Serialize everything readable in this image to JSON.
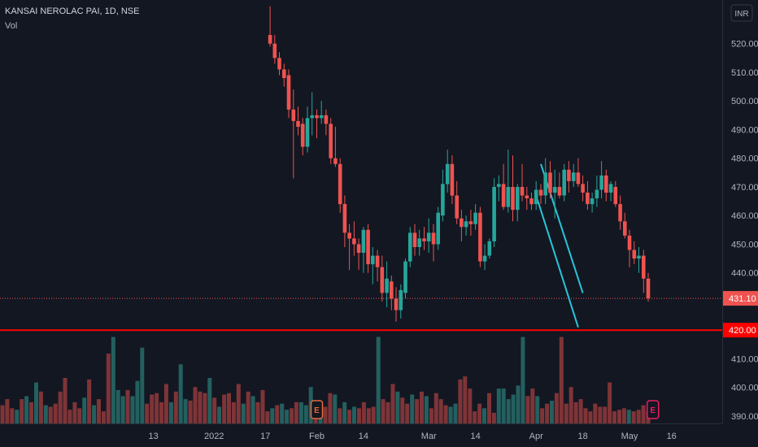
{
  "chart_data": {
    "type": "candlestick",
    "title": "KANSAI NEROLAC PAI, 1D, NSE",
    "currency": "INR",
    "volume_label": "Vol",
    "ylim": [
      387,
      527
    ],
    "y_ticks": [
      390,
      400,
      410,
      420,
      430,
      440,
      450,
      460,
      470,
      480,
      490,
      500,
      510,
      520
    ],
    "y_tick_labels": [
      "390.00",
      "400.00",
      "410.00",
      "420.00",
      "430.00",
      "440.00",
      "450.00",
      "460.00",
      "470.00",
      "480.00",
      "490.00",
      "500.00",
      "510.00",
      "520.00"
    ],
    "x_labels": [
      {
        "label": "13",
        "index": -44
      },
      {
        "label": "2022",
        "index": -31
      },
      {
        "label": "17",
        "index": -20
      },
      {
        "label": "Feb",
        "index": -9
      },
      {
        "label": "14",
        "index": 1
      },
      {
        "label": "Mar",
        "index": 15
      },
      {
        "label": "14",
        "index": 25
      },
      {
        "label": "Apr",
        "index": 38
      },
      {
        "label": "18",
        "index": 48
      },
      {
        "label": "May",
        "index": 58
      },
      {
        "label": "16",
        "index": 67
      }
    ],
    "last_price": "431.10",
    "last_value": 431.1,
    "support_level": "420.00",
    "support_value": 420,
    "earnings_markers": [
      {
        "label": "E",
        "index": -9
      },
      {
        "label": "E",
        "index": 63
      }
    ],
    "candles": [
      {
        "o": 523,
        "h": 533,
        "l": 519,
        "c": 520
      },
      {
        "o": 520,
        "h": 523,
        "l": 513,
        "c": 515
      },
      {
        "o": 515,
        "h": 517,
        "l": 509,
        "c": 511
      },
      {
        "o": 511,
        "h": 513,
        "l": 505,
        "c": 508
      },
      {
        "o": 509,
        "h": 511,
        "l": 494,
        "c": 497
      },
      {
        "o": 497,
        "h": 504,
        "l": 473,
        "c": 493
      },
      {
        "o": 493,
        "h": 498,
        "l": 488,
        "c": 491
      },
      {
        "o": 492,
        "h": 494,
        "l": 481,
        "c": 484
      },
      {
        "o": 484,
        "h": 498,
        "l": 482,
        "c": 494
      },
      {
        "o": 494,
        "h": 503,
        "l": 488,
        "c": 495
      },
      {
        "o": 495,
        "h": 497,
        "l": 487,
        "c": 494
      },
      {
        "o": 494,
        "h": 500,
        "l": 492,
        "c": 495
      },
      {
        "o": 495,
        "h": 497,
        "l": 488,
        "c": 492
      },
      {
        "o": 492,
        "h": 494,
        "l": 478,
        "c": 480
      },
      {
        "o": 480,
        "h": 491,
        "l": 477,
        "c": 478
      },
      {
        "o": 478,
        "h": 480,
        "l": 461,
        "c": 464
      },
      {
        "o": 464,
        "h": 467,
        "l": 449,
        "c": 454
      },
      {
        "o": 454,
        "h": 457,
        "l": 441,
        "c": 452
      },
      {
        "o": 452,
        "h": 458,
        "l": 446,
        "c": 450
      },
      {
        "o": 450,
        "h": 452,
        "l": 441,
        "c": 447
      },
      {
        "o": 447,
        "h": 456,
        "l": 440,
        "c": 455
      },
      {
        "o": 455,
        "h": 457,
        "l": 440,
        "c": 443
      },
      {
        "o": 443,
        "h": 449,
        "l": 436,
        "c": 446
      },
      {
        "o": 446,
        "h": 448,
        "l": 437,
        "c": 442
      },
      {
        "o": 442,
        "h": 446,
        "l": 430,
        "c": 433
      },
      {
        "o": 433,
        "h": 444,
        "l": 428,
        "c": 438
      },
      {
        "o": 437,
        "h": 439,
        "l": 427,
        "c": 431
      },
      {
        "o": 431,
        "h": 435,
        "l": 423,
        "c": 427
      },
      {
        "o": 427,
        "h": 436,
        "l": 424,
        "c": 434
      },
      {
        "o": 433,
        "h": 445,
        "l": 431,
        "c": 444
      },
      {
        "o": 444,
        "h": 456,
        "l": 442,
        "c": 454
      },
      {
        "o": 454,
        "h": 457,
        "l": 446,
        "c": 449
      },
      {
        "o": 449,
        "h": 455,
        "l": 446,
        "c": 452
      },
      {
        "o": 452,
        "h": 456,
        "l": 448,
        "c": 451
      },
      {
        "o": 451,
        "h": 459,
        "l": 447,
        "c": 454
      },
      {
        "o": 454,
        "h": 457,
        "l": 444,
        "c": 450
      },
      {
        "o": 450,
        "h": 463,
        "l": 448,
        "c": 461
      },
      {
        "o": 460,
        "h": 476,
        "l": 458,
        "c": 471
      },
      {
        "o": 471,
        "h": 483,
        "l": 468,
        "c": 478
      },
      {
        "o": 478,
        "h": 481,
        "l": 464,
        "c": 467
      },
      {
        "o": 467,
        "h": 472,
        "l": 457,
        "c": 459
      },
      {
        "o": 459,
        "h": 462,
        "l": 451,
        "c": 456
      },
      {
        "o": 456,
        "h": 460,
        "l": 453,
        "c": 458
      },
      {
        "o": 458,
        "h": 462,
        "l": 453,
        "c": 457
      },
      {
        "o": 457,
        "h": 464,
        "l": 455,
        "c": 461
      },
      {
        "o": 461,
        "h": 463,
        "l": 442,
        "c": 444
      },
      {
        "o": 444,
        "h": 450,
        "l": 441,
        "c": 446
      },
      {
        "o": 446,
        "h": 452,
        "l": 445,
        "c": 451
      },
      {
        "o": 451,
        "h": 473,
        "l": 449,
        "c": 470
      },
      {
        "o": 470,
        "h": 474,
        "l": 465,
        "c": 471
      },
      {
        "o": 471,
        "h": 478,
        "l": 462,
        "c": 463
      },
      {
        "o": 463,
        "h": 483,
        "l": 461,
        "c": 470
      },
      {
        "o": 470,
        "h": 481,
        "l": 458,
        "c": 462
      },
      {
        "o": 462,
        "h": 471,
        "l": 458,
        "c": 470
      },
      {
        "o": 470,
        "h": 478,
        "l": 465,
        "c": 467
      },
      {
        "o": 467,
        "h": 470,
        "l": 462,
        "c": 466
      },
      {
        "o": 466,
        "h": 468,
        "l": 462,
        "c": 464
      },
      {
        "o": 464,
        "h": 472,
        "l": 462,
        "c": 469
      },
      {
        "o": 469,
        "h": 471,
        "l": 464,
        "c": 467
      },
      {
        "o": 467,
        "h": 480,
        "l": 464,
        "c": 475
      },
      {
        "o": 475,
        "h": 479,
        "l": 466,
        "c": 468
      },
      {
        "o": 468,
        "h": 476,
        "l": 459,
        "c": 470
      },
      {
        "o": 470,
        "h": 475,
        "l": 466,
        "c": 467
      },
      {
        "o": 467,
        "h": 478,
        "l": 465,
        "c": 476
      },
      {
        "o": 476,
        "h": 479,
        "l": 468,
        "c": 472
      },
      {
        "o": 472,
        "h": 478,
        "l": 470,
        "c": 475
      },
      {
        "o": 475,
        "h": 480,
        "l": 470,
        "c": 471
      },
      {
        "o": 471,
        "h": 474,
        "l": 465,
        "c": 468
      },
      {
        "o": 468,
        "h": 472,
        "l": 462,
        "c": 464
      },
      {
        "o": 464,
        "h": 468,
        "l": 461,
        "c": 466
      },
      {
        "o": 466,
        "h": 474,
        "l": 463,
        "c": 469
      },
      {
        "o": 469,
        "h": 479,
        "l": 466,
        "c": 474
      },
      {
        "o": 474,
        "h": 476,
        "l": 465,
        "c": 468
      },
      {
        "o": 468,
        "h": 472,
        "l": 465,
        "c": 471
      },
      {
        "o": 470,
        "h": 472,
        "l": 463,
        "c": 464
      },
      {
        "o": 464,
        "h": 467,
        "l": 455,
        "c": 458
      },
      {
        "o": 458,
        "h": 461,
        "l": 452,
        "c": 453
      },
      {
        "o": 453,
        "h": 455,
        "l": 442,
        "c": 448
      },
      {
        "o": 448,
        "h": 451,
        "l": 443,
        "c": 445
      },
      {
        "o": 445,
        "h": 449,
        "l": 440,
        "c": 446
      },
      {
        "o": 446,
        "h": 448,
        "l": 433,
        "c": 438
      },
      {
        "o": 438,
        "h": 440,
        "l": 430,
        "c": 431.1
      }
    ],
    "volume": [
      {
        "v": 12,
        "up": false
      },
      {
        "v": 16,
        "up": false
      },
      {
        "v": 10,
        "up": false
      },
      {
        "v": 9,
        "up": true
      },
      {
        "v": 16,
        "up": false
      },
      {
        "v": 18,
        "up": true
      },
      {
        "v": 14,
        "up": false
      },
      {
        "v": 27,
        "up": true
      },
      {
        "v": 21,
        "up": false
      },
      {
        "v": 12,
        "up": true
      },
      {
        "v": 11,
        "up": false
      },
      {
        "v": 13,
        "up": false
      },
      {
        "v": 21,
        "up": false
      },
      {
        "v": 30,
        "up": false
      },
      {
        "v": 9,
        "up": false
      },
      {
        "v": 14,
        "up": false
      },
      {
        "v": 10,
        "up": false
      },
      {
        "v": 17,
        "up": true
      },
      {
        "v": 29,
        "up": false
      },
      {
        "v": 12,
        "up": true
      },
      {
        "v": 16,
        "up": false
      },
      {
        "v": 8,
        "up": false
      },
      {
        "v": 46,
        "up": false
      },
      {
        "v": 57,
        "up": true
      },
      {
        "v": 22,
        "up": true
      },
      {
        "v": 18,
        "up": true
      },
      {
        "v": 22,
        "up": false
      },
      {
        "v": 18,
        "up": true
      },
      {
        "v": 28,
        "up": true
      },
      {
        "v": 50,
        "up": true
      },
      {
        "v": 13,
        "up": false
      },
      {
        "v": 19,
        "up": false
      },
      {
        "v": 20,
        "up": false
      },
      {
        "v": 14,
        "up": false
      },
      {
        "v": 26,
        "up": false
      },
      {
        "v": 14,
        "up": true
      },
      {
        "v": 21,
        "up": false
      },
      {
        "v": 39,
        "up": true
      },
      {
        "v": 16,
        "up": true
      },
      {
        "v": 15,
        "up": false
      },
      {
        "v": 24,
        "up": false
      },
      {
        "v": 21,
        "up": false
      },
      {
        "v": 20,
        "up": false
      },
      {
        "v": 30,
        "up": true
      },
      {
        "v": 17,
        "up": false
      },
      {
        "v": 11,
        "up": true
      },
      {
        "v": 19,
        "up": false
      },
      {
        "v": 20,
        "up": false
      },
      {
        "v": 14,
        "up": false
      },
      {
        "v": 26,
        "up": false
      },
      {
        "v": 13,
        "up": true
      },
      {
        "v": 21,
        "up": false
      },
      {
        "v": 18,
        "up": true
      },
      {
        "v": 14,
        "up": false
      },
      {
        "v": 22,
        "up": false
      },
      {
        "v": 8,
        "up": false
      },
      {
        "v": 10,
        "up": true
      },
      {
        "v": 12,
        "up": false
      },
      {
        "v": 13,
        "up": true
      },
      {
        "v": 9,
        "up": true
      },
      {
        "v": 10,
        "up": false
      },
      {
        "v": 14,
        "up": false
      },
      {
        "v": 14,
        "up": true
      },
      {
        "v": 12,
        "up": true
      },
      {
        "v": 24,
        "up": true
      },
      {
        "v": 10,
        "up": false
      },
      {
        "v": 14,
        "up": true
      },
      {
        "v": 11,
        "up": false
      },
      {
        "v": 20,
        "up": false
      },
      {
        "v": 19,
        "up": true
      },
      {
        "v": 10,
        "up": false
      },
      {
        "v": 14,
        "up": true
      },
      {
        "v": 9,
        "up": false
      },
      {
        "v": 11,
        "up": true
      },
      {
        "v": 10,
        "up": false
      },
      {
        "v": 14,
        "up": false
      },
      {
        "v": 10,
        "up": false
      },
      {
        "v": 11,
        "up": false
      },
      {
        "v": 57,
        "up": true
      },
      {
        "v": 16,
        "up": false
      },
      {
        "v": 14,
        "up": false
      },
      {
        "v": 26,
        "up": false
      },
      {
        "v": 21,
        "up": true
      },
      {
        "v": 17,
        "up": false
      },
      {
        "v": 13,
        "up": false
      },
      {
        "v": 19,
        "up": true
      },
      {
        "v": 16,
        "up": false
      },
      {
        "v": 21,
        "up": false
      },
      {
        "v": 18,
        "up": true
      },
      {
        "v": 10,
        "up": false
      },
      {
        "v": 20,
        "up": false
      },
      {
        "v": 16,
        "up": false
      },
      {
        "v": 12,
        "up": false
      },
      {
        "v": 11,
        "up": true
      },
      {
        "v": 13,
        "up": true
      },
      {
        "v": 29,
        "up": false
      },
      {
        "v": 31,
        "up": false
      },
      {
        "v": 23,
        "up": false
      },
      {
        "v": 8,
        "up": false
      },
      {
        "v": 13,
        "up": false
      },
      {
        "v": 10,
        "up": true
      },
      {
        "v": 20,
        "up": false
      },
      {
        "v": 7,
        "up": false
      },
      {
        "v": 23,
        "up": true
      },
      {
        "v": 23,
        "up": true
      },
      {
        "v": 16,
        "up": true
      },
      {
        "v": 19,
        "up": true
      },
      {
        "v": 25,
        "up": true
      },
      {
        "v": 57,
        "up": true
      },
      {
        "v": 18,
        "up": false
      },
      {
        "v": 23,
        "up": false
      },
      {
        "v": 18,
        "up": true
      },
      {
        "v": 10,
        "up": false
      },
      {
        "v": 13,
        "up": false
      },
      {
        "v": 15,
        "up": true
      },
      {
        "v": 20,
        "up": false
      },
      {
        "v": 57,
        "up": false
      },
      {
        "v": 13,
        "up": false
      },
      {
        "v": 24,
        "up": false
      },
      {
        "v": 14,
        "up": false
      },
      {
        "v": 16,
        "up": false
      },
      {
        "v": 10,
        "up": false
      },
      {
        "v": 8,
        "up": false
      },
      {
        "v": 13,
        "up": false
      },
      {
        "v": 11,
        "up": false
      },
      {
        "v": 11,
        "up": false
      },
      {
        "v": 27,
        "up": false
      },
      {
        "v": 8,
        "up": false
      },
      {
        "v": 9,
        "up": false
      },
      {
        "v": 10,
        "up": false
      },
      {
        "v": 9,
        "up": true
      },
      {
        "v": 8,
        "up": false
      },
      {
        "v": 9,
        "up": false
      },
      {
        "v": 12,
        "up": false
      },
      {
        "v": 8,
        "up": false
      }
    ],
    "colors": {
      "up": "#26a69a",
      "down": "#ef5350",
      "up_vol": "#23605f",
      "down_vol": "#7f3437",
      "support": "#ff0000",
      "trend": "#26c6da",
      "background": "#131722"
    },
    "trendlines": [
      {
        "from": {
          "index": 58,
          "value": 478
        },
        "to": {
          "index": 67,
          "value": 433
        }
      },
      {
        "from": {
          "index": 57,
          "value": 467
        },
        "to": {
          "index": 66,
          "value": 421
        }
      }
    ]
  }
}
